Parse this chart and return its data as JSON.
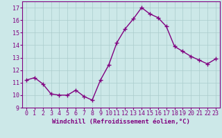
{
  "x": [
    0,
    1,
    2,
    3,
    4,
    5,
    6,
    7,
    8,
    9,
    10,
    11,
    12,
    13,
    14,
    15,
    16,
    17,
    18,
    19,
    20,
    21,
    22,
    23
  ],
  "y": [
    11.2,
    11.4,
    10.9,
    10.1,
    10.0,
    10.0,
    10.4,
    9.9,
    9.6,
    11.2,
    12.4,
    14.2,
    15.3,
    16.1,
    17.0,
    16.5,
    16.2,
    15.5,
    13.9,
    13.5,
    13.1,
    12.8,
    12.5,
    12.9
  ],
  "line_color": "#800080",
  "marker": "+",
  "marker_size": 4,
  "xlabel": "Windchill (Refroidissement éolien,°C)",
  "ylim": [
    9,
    17.5
  ],
  "yticks": [
    9,
    10,
    11,
    12,
    13,
    14,
    15,
    16,
    17
  ],
  "xlim": [
    -0.5,
    23.5
  ],
  "xticks": [
    0,
    1,
    2,
    3,
    4,
    5,
    6,
    7,
    8,
    9,
    10,
    11,
    12,
    13,
    14,
    15,
    16,
    17,
    18,
    19,
    20,
    21,
    22,
    23
  ],
  "bg_color": "#cce8e8",
  "grid_color": "#aacccc",
  "line_color_spine": "#800080",
  "tick_color": "#800080",
  "label_color": "#800080",
  "line_width": 1.0,
  "xlabel_fontsize": 6.5,
  "tick_fontsize": 6
}
